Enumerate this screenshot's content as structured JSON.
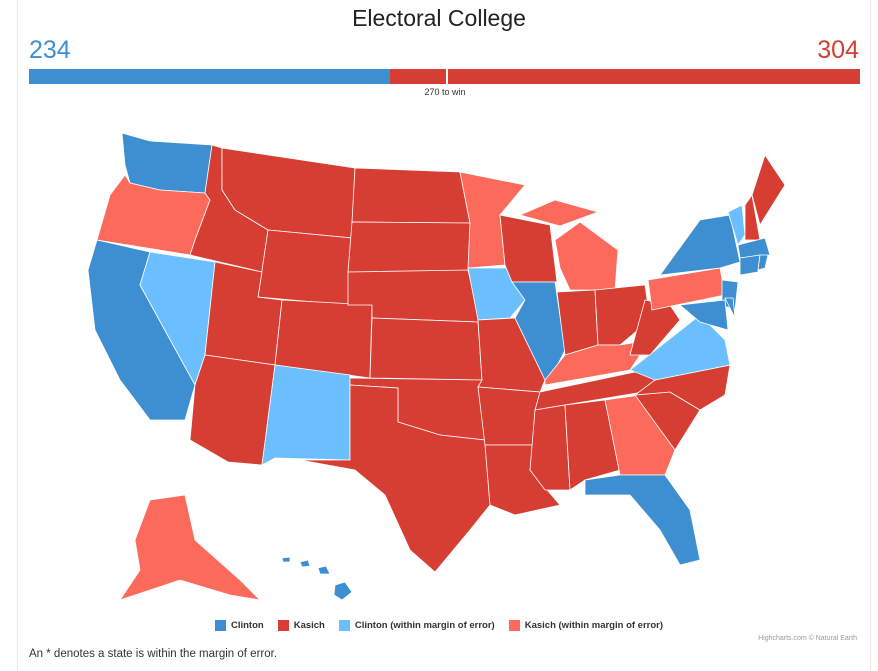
{
  "title": "Electoral College",
  "clinton_votes": "234",
  "kasich_votes": "304",
  "total_votes": 538,
  "to_win_label": "270 to win",
  "to_win": 270,
  "colors": {
    "Clinton": "#3d8fd1",
    "Kasich": "#d63e33",
    "Clinton (within margin of error)": "#6cbfff",
    "Kasich (within margin of error)": "#fb6a5b"
  },
  "legend": [
    "Clinton",
    "Kasich",
    "Clinton (within margin of error)",
    "Kasich (within margin of error)"
  ],
  "credits": "Highcharts.com © Natural Earth",
  "note": "An * denotes a state is within the margin of error.",
  "states": {
    "WA": "Clinton",
    "OR": "Kasich (within margin of error)",
    "CA": "Clinton",
    "NV": "Clinton (within margin of error)",
    "ID": "Kasich",
    "MT": "Kasich",
    "WY": "Kasich",
    "UT": "Kasich",
    "AZ": "Kasich",
    "CO": "Kasich",
    "NM": "Clinton (within margin of error)",
    "ND": "Kasich",
    "SD": "Kasich",
    "NE": "Kasich",
    "KS": "Kasich",
    "OK": "Kasich",
    "TX": "Kasich",
    "MN": "Kasich (within margin of error)",
    "IA": "Clinton (within margin of error)",
    "MO": "Kasich",
    "AR": "Kasich",
    "LA": "Kasich",
    "WI": "Kasich",
    "IL": "Clinton",
    "MI": "Kasich (within margin of error)",
    "IN": "Kasich",
    "OH": "Kasich",
    "KY": "Kasich (within margin of error)",
    "TN": "Kasich",
    "MS": "Kasich",
    "AL": "Kasich",
    "GA": "Kasich (within margin of error)",
    "FL": "Clinton",
    "SC": "Kasich",
    "NC": "Kasich",
    "VA": "Clinton (within margin of error)",
    "WV": "Kasich",
    "PA": "Kasich (within margin of error)",
    "NY": "Clinton",
    "VT": "Clinton (within margin of error)",
    "NH": "Kasich",
    "ME": "Kasich",
    "MA": "Clinton",
    "CT": "Clinton",
    "RI": "Clinton",
    "NJ": "Clinton",
    "MD": "Clinton",
    "DE": "Clinton",
    "AK": "Kasich (within margin of error)",
    "HI": "Clinton"
  }
}
